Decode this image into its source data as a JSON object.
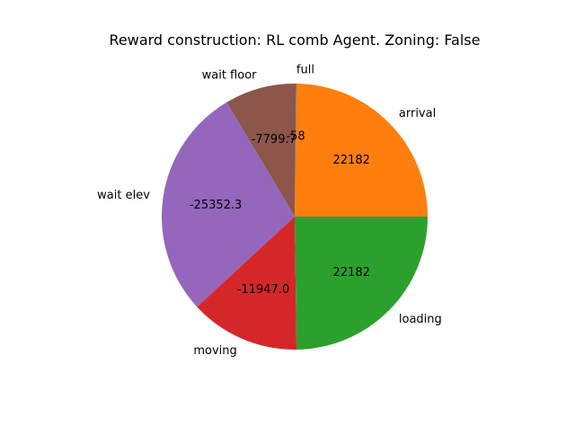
{
  "chart_data": {
    "type": "pie",
    "title": "Reward construction: RL comb Agent. Zoning: False",
    "slices": [
      {
        "label": "arrival",
        "value": 22182,
        "display": "22182",
        "color": "#ff7f0e"
      },
      {
        "label": "full",
        "value": -58,
        "display": "-58",
        "color": "#1f77b4"
      },
      {
        "label": "wait floor",
        "value": -7799.7,
        "display": "-7799.7",
        "color": "#8c564b"
      },
      {
        "label": "wait elev",
        "value": -25352.3,
        "display": "-25352.3",
        "color": "#9467bd"
      },
      {
        "label": "moving",
        "value": -11947.0,
        "display": "-11947.0",
        "color": "#d62728"
      },
      {
        "label": "loading",
        "value": 22182,
        "display": "22182",
        "color": "#2ca02c"
      }
    ],
    "start_angle_deg": 0,
    "direction": "counterclockwise",
    "slice_sizes_use_absolute_values": true
  }
}
